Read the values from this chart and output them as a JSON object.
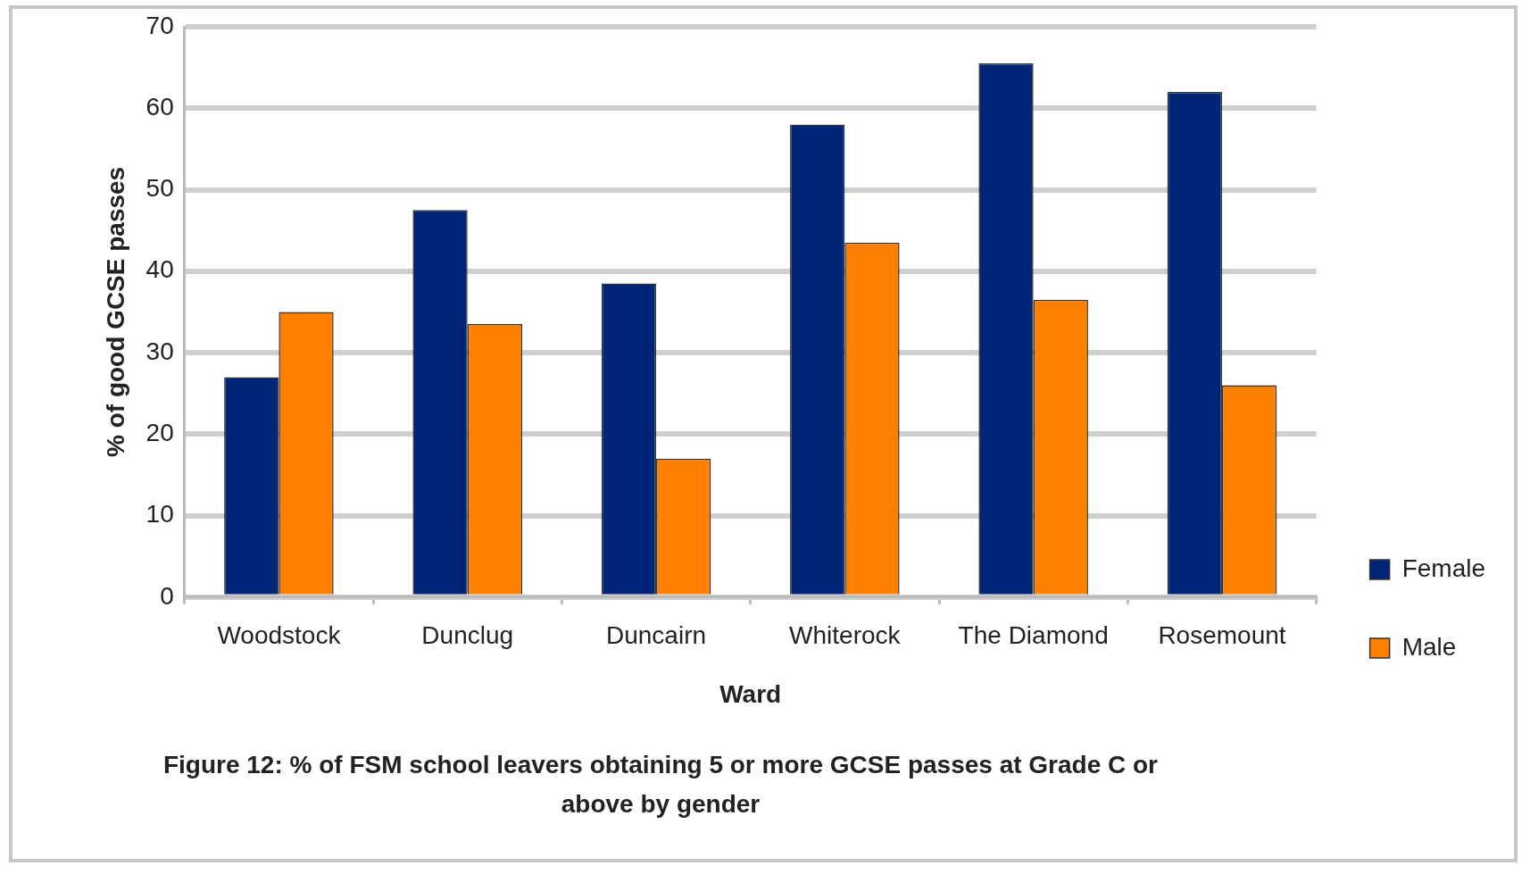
{
  "chart_data": {
    "type": "bar",
    "xlabel": "Ward",
    "ylabel": "% of good GCSE passes",
    "categories": [
      "Woodstock",
      "Dunclug",
      "Duncairn",
      "Whiterock",
      "The Diamond",
      "Rosemount"
    ],
    "series": [
      {
        "name": "Female",
        "color": "#002476",
        "values": [
          27,
          47.5,
          38.5,
          58,
          65.5,
          62
        ]
      },
      {
        "name": "Male",
        "color": "#ff7f00",
        "values": [
          35,
          33.5,
          17,
          43.5,
          36.5,
          26
        ]
      }
    ],
    "ylim": [
      0,
      70
    ],
    "yticks": [
      0,
      10,
      20,
      30,
      40,
      50,
      60,
      70
    ],
    "grid": "y",
    "legend": "right",
    "annotations": [
      "Figure 12: % of FSM school leavers obtaining 5 or more GCSE passes at Grade C or above by gender"
    ]
  }
}
